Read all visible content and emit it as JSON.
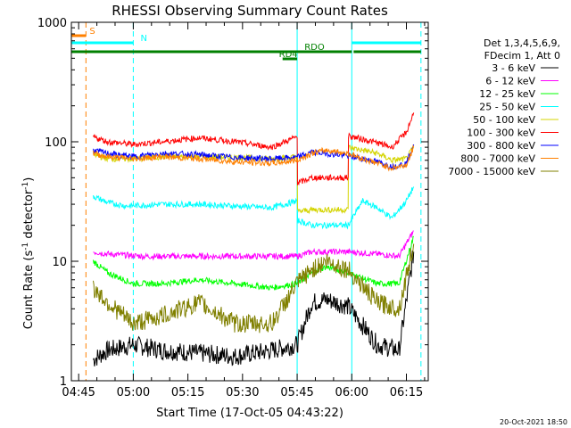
{
  "chart_data": {
    "type": "line",
    "title": "RHESSI Observing Summary Count Rates",
    "xlabel": "Start Time (17-Oct-05 04:43:22)",
    "ylabel_parts": [
      "Count Rate (s",
      "-1",
      " detector",
      "-1",
      ")"
    ],
    "y_scale": "log",
    "ylim": [
      1,
      1000
    ],
    "xlim_minutes": [
      0,
      98
    ],
    "x_ticks": [
      {
        "minute": 2,
        "label": "04:45"
      },
      {
        "minute": 17,
        "label": "05:00"
      },
      {
        "minute": 32,
        "label": "05:15"
      },
      {
        "minute": 47,
        "label": "05:30"
      },
      {
        "minute": 62,
        "label": "05:45"
      },
      {
        "minute": 77,
        "label": "06:00"
      },
      {
        "minute": 92,
        "label": "06:15"
      }
    ],
    "y_ticks": [
      {
        "value": 1,
        "label": "1"
      },
      {
        "value": 10,
        "label": "10"
      },
      {
        "value": 100,
        "label": "100"
      },
      {
        "value": 1000,
        "label": "1000"
      }
    ],
    "legend_header": [
      "Det 1,3,4,5,6,9,",
      "FDecim 1, Att 0"
    ],
    "legend_position": "right",
    "series": [
      {
        "name": "3 - 6 keV",
        "color": "#000000",
        "x": [
          6,
          10,
          17,
          25,
          35,
          45,
          55,
          62,
          66,
          70,
          76,
          84,
          90,
          94
        ],
        "y": [
          1.5,
          1.8,
          2.0,
          1.8,
          1.7,
          1.6,
          1.8,
          2.0,
          4.5,
          4.8,
          4.2,
          2.0,
          1.8,
          12
        ]
      },
      {
        "name": "6 - 12 keV",
        "color": "#ff00ff",
        "x": [
          6,
          10,
          20,
          35,
          50,
          62,
          66,
          70,
          76,
          84,
          90,
          94
        ],
        "y": [
          12,
          11.5,
          11,
          11,
          11,
          11,
          12,
          12,
          12,
          11.5,
          11,
          18
        ]
      },
      {
        "name": "12 - 25 keV",
        "color": "#00ff00",
        "x": [
          6,
          10,
          17,
          25,
          35,
          45,
          55,
          62,
          66,
          70,
          76,
          84,
          90,
          94
        ],
        "y": [
          10,
          8,
          6.5,
          6.5,
          7,
          6.5,
          6,
          6.5,
          8,
          9,
          8,
          6.5,
          6.5,
          16
        ]
      },
      {
        "name": "25 - 50 keV",
        "color": "#00ffff",
        "x": [
          6,
          10,
          15,
          25,
          35,
          45,
          55,
          62,
          62.1,
          66,
          70,
          76,
          80,
          84,
          88,
          92,
          94
        ],
        "y": [
          35,
          31,
          29,
          30,
          30,
          29,
          28,
          32,
          22,
          20,
          20,
          20,
          32,
          28,
          23,
          32,
          42
        ]
      },
      {
        "name": "50 - 100 keV",
        "color": "#d4d400",
        "x": [
          6,
          10,
          17,
          25,
          35,
          45,
          55,
          62,
          62.1,
          66,
          70,
          76,
          76.1,
          80,
          84,
          88,
          92,
          94
        ],
        "y": [
          78,
          72,
          72,
          75,
          75,
          74,
          72,
          75,
          26,
          27,
          27,
          27,
          90,
          85,
          80,
          70,
          72,
          90
        ]
      },
      {
        "name": "100 - 300 keV",
        "color": "#ff0000",
        "x": [
          6,
          10,
          17,
          25,
          35,
          45,
          55,
          62,
          62.1,
          66,
          70,
          76,
          76.1,
          80,
          84,
          88,
          92,
          94
        ],
        "y": [
          110,
          100,
          95,
          100,
          108,
          100,
          90,
          110,
          45,
          50,
          50,
          50,
          112,
          105,
          98,
          90,
          120,
          175
        ]
      },
      {
        "name": "300 - 800 keV",
        "color": "#0000ff",
        "x": [
          6,
          10,
          17,
          25,
          35,
          45,
          55,
          62,
          66,
          70,
          76,
          80,
          84,
          88,
          92,
          94
        ],
        "y": [
          85,
          80,
          75,
          80,
          78,
          74,
          72,
          74,
          82,
          80,
          76,
          72,
          68,
          62,
          66,
          95
        ]
      },
      {
        "name": "800 - 7000 keV",
        "color": "#ff8000",
        "x": [
          6,
          10,
          17,
          25,
          35,
          45,
          55,
          62,
          66,
          70,
          76,
          80,
          84,
          88,
          92,
          94
        ],
        "y": [
          80,
          75,
          72,
          75,
          72,
          68,
          66,
          70,
          80,
          85,
          80,
          72,
          66,
          60,
          64,
          90
        ]
      },
      {
        "name": "7000 - 15000 keV",
        "color": "#808000",
        "x": [
          6,
          10,
          17,
          25,
          35,
          45,
          55,
          62,
          66,
          70,
          76,
          84,
          90,
          94
        ],
        "y": [
          6,
          4.5,
          3.0,
          3.5,
          4.5,
          3.0,
          3.0,
          6.5,
          8.5,
          10,
          8.5,
          4.5,
          4.0,
          14
        ]
      }
    ],
    "vertical_lines": [
      {
        "minute": 0,
        "style": "solid",
        "color": "#00ffff"
      },
      {
        "minute": 4,
        "style": "dashed",
        "color": "#ff8000"
      },
      {
        "minute": 17,
        "style": "dashed",
        "color": "#00ffff"
      },
      {
        "minute": 62,
        "style": "solid",
        "color": "#00ffff"
      },
      {
        "minute": 77,
        "style": "solid",
        "color": "#00ffff"
      },
      {
        "minute": 96,
        "style": "dashed",
        "color": "#00ffff"
      }
    ],
    "flag_bars": [
      {
        "label": "S",
        "color": "#ff8000",
        "x0": 0,
        "x1": 4,
        "label_minute": 5
      },
      {
        "label": "N",
        "color": "#00ffff",
        "x0": 17,
        "x1": 17,
        "label_minute": 19,
        "bars": [
          [
            0,
            17
          ],
          [
            77,
            96
          ]
        ]
      },
      {
        "label": "RDO",
        "color": "#008000",
        "bars": [
          [
            0,
            77
          ],
          [
            77.5,
            96
          ]
        ],
        "label_minute": 64
      },
      {
        "label": "RD4",
        "color": "#008000",
        "bars": [
          [
            58,
            62
          ]
        ],
        "label_minute": 57
      }
    ]
  },
  "timestamp": "20-Oct-2021 18:50"
}
